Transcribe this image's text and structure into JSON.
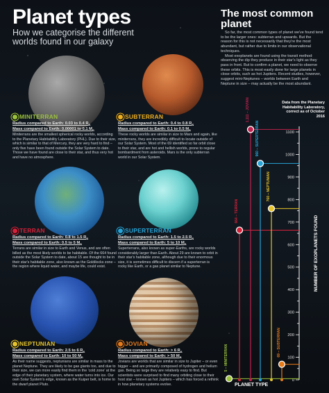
{
  "header": {
    "title": "Planet types",
    "subtitle": "How we categorise the different worlds found in our galaxy"
  },
  "planets": [
    {
      "name": "MINITERRAN",
      "color": "#9cc33b",
      "radius": "Radius compared to Earth: 0.03 to 0.4 R",
      "mass": "Mass compared to Earth: 0.00001 to 0.1 M",
      "desc": "Miniterrans are the smallest spherical rocky worlds, according to the Planetary Habitability Laboratory (PHL). Due to their size, which is similar to that of Mercury, they are very hard to find – only five have been found outside the Solar System to date. Those we have found are close to their star, and thus very hot and have no atmosphere."
    },
    {
      "name": "SUBTERRAN",
      "color": "#f0b01e",
      "radius": "Radius compared to Earth: 0.4 to 0.8 R",
      "mass": "Mass compared to Earth: 0.1 to 0.5 M",
      "desc": "These rocky worlds are similar in size to Mars and again, like miniterrans, they are incredibly difficult to locate outside of our Solar System. Most of the 69 identified so far orbit close to their star, and are hot and hellish worlds, prone to regular bombardment from asteroids. Mars is the only subterran world in our Solar System."
    },
    {
      "name": "TERRAN",
      "color": "#d6213a",
      "radius": "Radius compared to Earth: 0.8 to 1.5 R",
      "mass": "Mass compared to Earth: 0.5 to 5 M",
      "desc": "Terrans are similar in size to Earth and Venus, and are often billed as the most likely worlds to be habitable. Of the 664 found outside the Solar System to date, about 15 are thought to be in their star's habitable zone, also known as the Goldilocks zone – the region where liquid water, and maybe life, could exist."
    },
    {
      "name": "SUPERTERRAN",
      "color": "#27a4d8",
      "radius": "Radius compared to Earth: 1.5 to 2.5 R",
      "mass": "Mass compared to Earth: 5 to 10 M",
      "desc": "Superterrans, also known as super-Earths, are rocky worlds considerably larger than Earth. About 29 are known to orbit in their star's habitable zone, although due to their enormous size, it is sometimes difficult to discern if a superterran is rocky like Earth, or a gas planet similar to Neptune."
    },
    {
      "name": "NEPTUNIAN",
      "color": "#e7c52a",
      "radius": "Radius compared to Earth: 2.5 to 6 R",
      "mass": "Mass compared to Earth: 10 to 50 M",
      "desc": "As their name suggests, neptunians are similar in mass to the planet Neptune. They are likely to be gas giants too, and due to their size, we can more easily find them in the 'cold zone' at the edge of their planetary system, where water turns into ice. Our own Solar System's edge, known as the Kuiper belt, is home to the dwarf planet Pluto."
    },
    {
      "name": "JOVIAN",
      "color": "#e77a19",
      "radius": "Radius compared to Earth: > 6 R",
      "mass": "Mass compared to Earth: > 50 M",
      "desc": "Jovians are worlds that are similar in size to Jupiter – or even bigger – and are primarily composed of hydrogen and helium gas. Being so large they are relatively easy to find. But scientists were surprised to find many orbiting close to their host star – known as hot Jupiters – which has forced a rethink in how planetary systems evolve."
    }
  ],
  "sidebar": {
    "title": "The most common planet",
    "p1": "So far, the most common types of planet we've found tend to be the larger ones: subterran and upwards. But the reason for this is not necessarily that they're the most abundant, but rather due to limits in our observational techniques.",
    "p2": "Most exoplanets are found using the transit method: observing the dip they produce in their star's light as they pass in front. But to confirm a planet, we need to observe these orbits. This is most easily done for large planets in close orbits, such as hot Jupiters. Recent studies, however, suggest mini-Neptunes – worlds between Earth and Neptune in size – may actually be the most abundant."
  },
  "chart_data": {
    "type": "bar",
    "title": "Data from the Planetary Habitability Laboratory, correct as of October 2016",
    "xlabel": "PLANET TYPE",
    "ylabel": "NUMBER OF EXOPLANETS FOUND",
    "ylim": [
      0,
      1100
    ],
    "yticks": [
      0,
      50,
      100,
      150,
      200,
      250,
      300,
      350,
      400,
      450,
      500,
      550,
      600,
      650,
      700,
      750,
      800,
      850,
      900,
      950,
      1000,
      1050,
      1100
    ],
    "ytick_labels": [
      "0",
      "",
      "100",
      "",
      "200",
      "",
      "300",
      "",
      "400",
      "",
      "500",
      "",
      "600",
      "",
      "700",
      "",
      "800",
      "",
      "900",
      "",
      "1000",
      "",
      "1100"
    ],
    "series": [
      {
        "name": "MINITERRAN",
        "value": 5,
        "label": "5 – MINITERRAN",
        "color": "#9cc33b"
      },
      {
        "name": "TERRAN",
        "value": 664,
        "label": "664 – TERRAN",
        "color": "#d6213a"
      },
      {
        "name": "JOVIAN",
        "value": 1111,
        "label": "1,111 – JOVIAN",
        "color": "#c0224f"
      },
      {
        "name": "SUPERTERRAN",
        "value": 960,
        "label": "960 – SUPERTERRAN",
        "color": "#27a4d8"
      },
      {
        "name": "NEPTUNIAN",
        "value": 760,
        "label": "760 – NEPTUNIAN",
        "color": "#e7c52a"
      },
      {
        "name": "SUBTERRAN",
        "value": 69,
        "label": "69 – SUBTERRAN",
        "color": "#e77a19"
      }
    ]
  }
}
